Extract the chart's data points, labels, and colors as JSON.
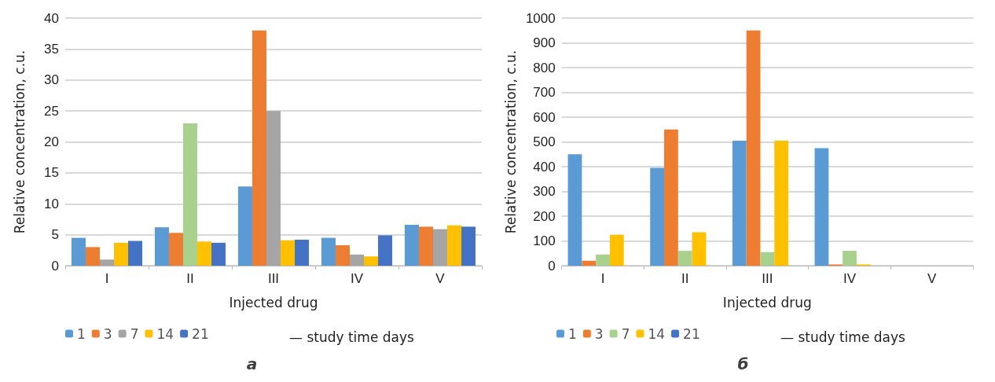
{
  "chart_data": [
    {
      "type": "bar",
      "title": "а",
      "xlabel": "Injected drug",
      "ylabel": "Relative concentration, c.u.",
      "legend_title": "— study time days",
      "categories": [
        "I",
        "II",
        "III",
        "IV",
        "V"
      ],
      "ylim": [
        0,
        40
      ],
      "yticks": [
        0,
        5,
        10,
        15,
        20,
        25,
        30,
        35,
        40
      ],
      "grid": "y",
      "legend": "bottom",
      "series": [
        {
          "name": "1",
          "color": "#5b9bd5",
          "values": [
            4.5,
            6.2,
            12.8,
            4.5,
            6.6
          ]
        },
        {
          "name": "3",
          "color": "#ed7d31",
          "values": [
            3,
            5.3,
            38,
            3.3,
            6.3
          ]
        },
        {
          "name": "7",
          "color": "#a5a5a5",
          "colors": [
            "#a5a5a5",
            "#a9d18e",
            "#a5a5a5",
            "#a5a5a5",
            "#a5a5a5"
          ],
          "values": [
            1,
            23,
            25,
            1.8,
            5.9
          ]
        },
        {
          "name": "14",
          "color": "#ffc000",
          "values": [
            3.7,
            3.9,
            4.1,
            1.5,
            6.5
          ]
        },
        {
          "name": "21",
          "color": "#4472c4",
          "values": [
            4,
            3.7,
            4.2,
            4.9,
            6.3
          ]
        }
      ]
    },
    {
      "type": "bar",
      "title": "б",
      "xlabel": "Injected drug",
      "ylabel": "Relative concentration, c.u.",
      "legend_title": "— study time days",
      "categories": [
        "I",
        "II",
        "III",
        "IV",
        "V"
      ],
      "ylim": [
        0,
        1000
      ],
      "yticks": [
        0,
        100,
        200,
        300,
        400,
        500,
        600,
        700,
        800,
        900,
        1000
      ],
      "grid": "y",
      "legend": "bottom",
      "series": [
        {
          "name": "1",
          "color": "#5b9bd5",
          "values": [
            450,
            395,
            505,
            475,
            0
          ]
        },
        {
          "name": "3",
          "color": "#ed7d31",
          "values": [
            20,
            550,
            950,
            5,
            0
          ]
        },
        {
          "name": "7",
          "color": "#a9d18e",
          "values": [
            45,
            60,
            55,
            60,
            0
          ]
        },
        {
          "name": "14",
          "color": "#ffc000",
          "values": [
            125,
            135,
            505,
            5,
            0
          ]
        },
        {
          "name": "21",
          "color": "#4472c4",
          "values": [
            0,
            0,
            0,
            0,
            0
          ]
        }
      ]
    }
  ]
}
